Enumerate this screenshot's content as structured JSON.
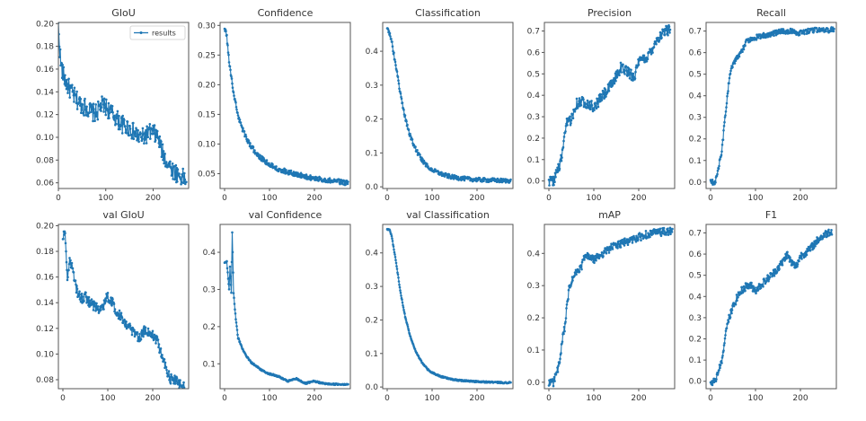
{
  "figure": {
    "line_color": "#1f77b4",
    "legend_label": "results",
    "legend_location": "upper-right of GIoU panel"
  },
  "chart_data": [
    {
      "type": "line",
      "title": "GIoU",
      "xlim": [
        0,
        275
      ],
      "ylim": [
        0.055,
        0.201
      ],
      "xticks": [
        "0",
        "100",
        "200"
      ],
      "yticks": [
        "0.06",
        "0.08",
        "0.10",
        "0.12",
        "0.14",
        "0.16",
        "0.18",
        "0.20"
      ],
      "ytick_values": [
        0.06,
        0.08,
        0.1,
        0.12,
        0.14,
        0.16,
        0.18,
        0.2
      ],
      "series": [
        {
          "name": "results",
          "x": [
            0,
            5,
            10,
            20,
            30,
            40,
            50,
            60,
            70,
            80,
            90,
            100,
            110,
            120,
            130,
            140,
            150,
            160,
            170,
            180,
            190,
            200,
            210,
            220,
            230,
            240,
            250,
            260,
            270
          ],
          "values": [
            0.197,
            0.165,
            0.155,
            0.145,
            0.138,
            0.132,
            0.128,
            0.126,
            0.122,
            0.121,
            0.128,
            0.127,
            0.122,
            0.118,
            0.113,
            0.11,
            0.108,
            0.104,
            0.1,
            0.1,
            0.104,
            0.104,
            0.1,
            0.086,
            0.078,
            0.072,
            0.068,
            0.065,
            0.063
          ],
          "noise": 0.008
        }
      ],
      "legend": [
        "results"
      ]
    },
    {
      "type": "line",
      "title": "Confidence",
      "xlim": [
        -10,
        280
      ],
      "ylim": [
        0.025,
        0.305
      ],
      "xticks": [
        "0",
        "100",
        "200"
      ],
      "yticks": [
        "0.05",
        "0.10",
        "0.15",
        "0.20",
        "0.25",
        "0.30"
      ],
      "ytick_values": [
        0.05,
        0.1,
        0.15,
        0.2,
        0.25,
        0.3
      ],
      "series": [
        {
          "name": "results",
          "x": [
            0,
            5,
            10,
            20,
            30,
            40,
            50,
            60,
            70,
            80,
            90,
            100,
            120,
            140,
            160,
            180,
            200,
            220,
            240,
            260,
            275
          ],
          "values": [
            0.298,
            0.28,
            0.24,
            0.185,
            0.148,
            0.125,
            0.108,
            0.095,
            0.085,
            0.077,
            0.071,
            0.066,
            0.058,
            0.053,
            0.049,
            0.045,
            0.042,
            0.04,
            0.038,
            0.036,
            0.034
          ],
          "noise": 0.004
        }
      ]
    },
    {
      "type": "line",
      "title": "Classification",
      "xlim": [
        -10,
        280
      ],
      "ylim": [
        -0.005,
        0.485
      ],
      "xticks": [
        "0",
        "100",
        "200"
      ],
      "yticks": [
        "0.0",
        "0.1",
        "0.2",
        "0.3",
        "0.4"
      ],
      "ytick_values": [
        0.0,
        0.1,
        0.2,
        0.3,
        0.4
      ],
      "series": [
        {
          "name": "results",
          "x": [
            0,
            5,
            10,
            20,
            30,
            40,
            50,
            60,
            70,
            80,
            90,
            100,
            120,
            140,
            160,
            180,
            200,
            220,
            240,
            260,
            275
          ],
          "values": [
            0.47,
            0.455,
            0.43,
            0.35,
            0.27,
            0.205,
            0.155,
            0.12,
            0.095,
            0.075,
            0.06,
            0.05,
            0.038,
            0.03,
            0.026,
            0.023,
            0.021,
            0.02,
            0.019,
            0.018,
            0.018
          ],
          "noise": 0.006
        }
      ]
    },
    {
      "type": "line",
      "title": "Precision",
      "xlim": [
        -10,
        280
      ],
      "ylim": [
        -0.035,
        0.74
      ],
      "xticks": [
        "0",
        "100",
        "200"
      ],
      "yticks": [
        "0.0",
        "0.1",
        "0.2",
        "0.3",
        "0.4",
        "0.5",
        "0.6",
        "0.7"
      ],
      "ytick_values": [
        0.0,
        0.1,
        0.2,
        0.3,
        0.4,
        0.5,
        0.6,
        0.7
      ],
      "series": [
        {
          "name": "results",
          "x": [
            0,
            10,
            15,
            20,
            25,
            30,
            35,
            40,
            50,
            60,
            70,
            80,
            90,
            100,
            110,
            120,
            130,
            140,
            150,
            160,
            170,
            180,
            190,
            200,
            210,
            220,
            230,
            240,
            250,
            260,
            270
          ],
          "values": [
            0.0,
            0.0,
            0.03,
            0.05,
            0.08,
            0.13,
            0.2,
            0.27,
            0.29,
            0.36,
            0.37,
            0.37,
            0.36,
            0.34,
            0.37,
            0.4,
            0.42,
            0.45,
            0.49,
            0.53,
            0.52,
            0.5,
            0.49,
            0.55,
            0.57,
            0.58,
            0.62,
            0.66,
            0.68,
            0.7,
            0.71
          ],
          "noise": 0.025
        }
      ]
    },
    {
      "type": "line",
      "title": "Recall",
      "xlim": [
        -10,
        280
      ],
      "ylim": [
        -0.03,
        0.74
      ],
      "xticks": [
        "0",
        "100",
        "200"
      ],
      "yticks": [
        "0.0",
        "0.1",
        "0.2",
        "0.3",
        "0.4",
        "0.5",
        "0.6",
        "0.7"
      ],
      "ytick_values": [
        0.0,
        0.1,
        0.2,
        0.3,
        0.4,
        0.5,
        0.6,
        0.7
      ],
      "series": [
        {
          "name": "results",
          "x": [
            0,
            10,
            15,
            20,
            25,
            30,
            35,
            40,
            45,
            50,
            60,
            70,
            80,
            90,
            100,
            120,
            140,
            160,
            180,
            200,
            220,
            240,
            260,
            275
          ],
          "values": [
            0.0,
            0.0,
            0.04,
            0.09,
            0.14,
            0.25,
            0.35,
            0.45,
            0.52,
            0.55,
            0.58,
            0.61,
            0.65,
            0.66,
            0.67,
            0.68,
            0.69,
            0.7,
            0.7,
            0.69,
            0.7,
            0.705,
            0.705,
            0.705
          ],
          "noise": 0.012
        }
      ]
    },
    {
      "type": "line",
      "title": "val GIoU",
      "xlim": [
        -10,
        280
      ],
      "ylim": [
        0.073,
        0.201
      ],
      "xticks": [
        "0",
        "100",
        "200"
      ],
      "yticks": [
        "0.08",
        "0.10",
        "0.12",
        "0.14",
        "0.16",
        "0.18",
        "0.20"
      ],
      "ytick_values": [
        0.08,
        0.1,
        0.12,
        0.14,
        0.16,
        0.18,
        0.2
      ],
      "series": [
        {
          "name": "results",
          "x": [
            0,
            5,
            10,
            15,
            20,
            30,
            40,
            50,
            60,
            70,
            80,
            90,
            100,
            110,
            120,
            130,
            140,
            150,
            160,
            170,
            180,
            190,
            200,
            210,
            220,
            230,
            240,
            250,
            260,
            270
          ],
          "values": [
            0.192,
            0.194,
            0.16,
            0.172,
            0.168,
            0.15,
            0.143,
            0.145,
            0.14,
            0.137,
            0.136,
            0.138,
            0.145,
            0.14,
            0.133,
            0.129,
            0.125,
            0.119,
            0.115,
            0.113,
            0.118,
            0.117,
            0.116,
            0.11,
            0.1,
            0.088,
            0.081,
            0.079,
            0.077,
            0.076
          ],
          "noise": 0.004
        }
      ]
    },
    {
      "type": "line",
      "title": "val Confidence",
      "xlim": [
        -10,
        280
      ],
      "ylim": [
        0.033,
        0.475
      ],
      "xticks": [
        "0",
        "100",
        "200"
      ],
      "yticks": [
        "0.1",
        "0.2",
        "0.3",
        "0.4"
      ],
      "ytick_values": [
        0.1,
        0.2,
        0.3,
        0.4
      ],
      "series": [
        {
          "name": "results",
          "x": [
            0,
            5,
            10,
            12,
            15,
            17,
            20,
            25,
            30,
            40,
            50,
            60,
            70,
            80,
            90,
            100,
            120,
            140,
            160,
            180,
            200,
            220,
            240,
            260,
            275
          ],
          "values": [
            0.372,
            0.374,
            0.3,
            0.36,
            0.29,
            0.455,
            0.29,
            0.22,
            0.17,
            0.14,
            0.118,
            0.103,
            0.095,
            0.085,
            0.078,
            0.073,
            0.066,
            0.053,
            0.06,
            0.047,
            0.053,
            0.047,
            0.045,
            0.045,
            0.045
          ],
          "noise": 0.002
        }
      ]
    },
    {
      "type": "line",
      "title": "val Classification",
      "xlim": [
        -10,
        280
      ],
      "ylim": [
        -0.005,
        0.485
      ],
      "xticks": [
        "0",
        "100",
        "200"
      ],
      "yticks": [
        "0.0",
        "0.1",
        "0.2",
        "0.3",
        "0.4"
      ],
      "ytick_values": [
        0.0,
        0.1,
        0.2,
        0.3,
        0.4
      ],
      "series": [
        {
          "name": "results",
          "x": [
            0,
            5,
            10,
            20,
            30,
            40,
            50,
            60,
            70,
            80,
            90,
            100,
            120,
            140,
            160,
            180,
            200,
            220,
            240,
            260,
            275
          ],
          "values": [
            0.47,
            0.47,
            0.45,
            0.37,
            0.28,
            0.21,
            0.158,
            0.118,
            0.09,
            0.068,
            0.053,
            0.043,
            0.031,
            0.024,
            0.02,
            0.018,
            0.016,
            0.015,
            0.014,
            0.013,
            0.013
          ],
          "noise": 0.002
        }
      ]
    },
    {
      "type": "line",
      "title": "mAP",
      "xlim": [
        -10,
        280
      ],
      "ylim": [
        -0.02,
        0.49
      ],
      "xticks": [
        "0",
        "100",
        "200"
      ],
      "yticks": [
        "0.0",
        "0.1",
        "0.2",
        "0.3",
        "0.4"
      ],
      "ytick_values": [
        0.0,
        0.1,
        0.2,
        0.3,
        0.4
      ],
      "series": [
        {
          "name": "results",
          "x": [
            0,
            10,
            15,
            20,
            25,
            30,
            35,
            40,
            45,
            50,
            60,
            70,
            80,
            90,
            100,
            120,
            140,
            160,
            180,
            200,
            220,
            240,
            260,
            275
          ],
          "values": [
            0.0,
            0.0,
            0.02,
            0.04,
            0.07,
            0.13,
            0.17,
            0.23,
            0.29,
            0.31,
            0.34,
            0.35,
            0.39,
            0.39,
            0.38,
            0.4,
            0.42,
            0.43,
            0.44,
            0.45,
            0.46,
            0.465,
            0.467,
            0.468
          ],
          "noise": 0.012
        }
      ]
    },
    {
      "type": "line",
      "title": "F1",
      "xlim": [
        -10,
        280
      ],
      "ylim": [
        -0.035,
        0.74
      ],
      "xticks": [
        "0",
        "100",
        "200"
      ],
      "yticks": [
        "0.0",
        "0.1",
        "0.2",
        "0.3",
        "0.4",
        "0.5",
        "0.6",
        "0.7"
      ],
      "ytick_values": [
        0.0,
        0.1,
        0.2,
        0.3,
        0.4,
        0.5,
        0.6,
        0.7
      ],
      "series": [
        {
          "name": "results",
          "x": [
            0,
            10,
            15,
            20,
            25,
            30,
            35,
            40,
            50,
            60,
            70,
            80,
            90,
            100,
            120,
            140,
            160,
            170,
            180,
            190,
            200,
            220,
            240,
            260,
            270
          ],
          "values": [
            0.0,
            0.0,
            0.03,
            0.06,
            0.1,
            0.17,
            0.24,
            0.29,
            0.35,
            0.4,
            0.43,
            0.45,
            0.45,
            0.43,
            0.47,
            0.51,
            0.56,
            0.6,
            0.56,
            0.54,
            0.59,
            0.62,
            0.67,
            0.7,
            0.71
          ],
          "noise": 0.018
        }
      ]
    }
  ]
}
